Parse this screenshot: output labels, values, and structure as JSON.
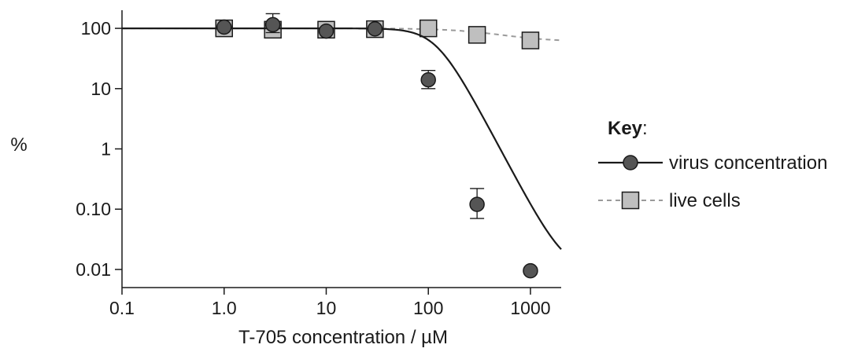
{
  "chart_data": {
    "type": "scatter",
    "xlabel": "T-705 concentration / µM",
    "ylabel": "%",
    "x_scale": "log",
    "y_scale": "log",
    "xlim": [
      0.1,
      2000
    ],
    "ylim": [
      0.005,
      200
    ],
    "x_ticks": [
      0.1,
      1,
      10,
      100,
      1000
    ],
    "x_tick_labels": [
      "0.1",
      "1.0",
      "10",
      "100",
      "1000"
    ],
    "y_ticks": [
      0.01,
      0.1,
      1,
      10,
      100
    ],
    "y_tick_labels": [
      "0.01",
      "0.10",
      "1",
      "10",
      "100"
    ],
    "grid": false,
    "legend": {
      "title": "Key",
      "title_suffix": ":",
      "placement": "right"
    },
    "series": [
      {
        "name": "virus concentration",
        "marker": "circle",
        "line": "solid",
        "color": "#555555",
        "line_color": "#1a1a1a",
        "points": [
          {
            "x": 1,
            "y": 105
          },
          {
            "x": 3,
            "y": 115,
            "err_low": 85,
            "err_high": 175
          },
          {
            "x": 10,
            "y": 90
          },
          {
            "x": 30,
            "y": 98
          },
          {
            "x": 100,
            "y": 14,
            "err_low": 10,
            "err_high": 20
          },
          {
            "x": 300,
            "y": 0.12,
            "err_low": 0.07,
            "err_high": 0.22
          },
          {
            "x": 1000,
            "y": 0.0095
          }
        ],
        "curve": {
          "top": 100,
          "bottom": 0.0093,
          "ec50": 120,
          "slope": 3.2
        }
      },
      {
        "name": "live cells",
        "marker": "square",
        "line": "dashed",
        "color": "#bfbfbf",
        "line_color": "#9a9a9a",
        "points": [
          {
            "x": 1,
            "y": 100
          },
          {
            "x": 3,
            "y": 95
          },
          {
            "x": 10,
            "y": 95
          },
          {
            "x": 30,
            "y": 97
          },
          {
            "x": 100,
            "y": 100
          },
          {
            "x": 300,
            "y": 78
          },
          {
            "x": 1000,
            "y": 63
          }
        ],
        "curve": {
          "top": 100,
          "bottom": 60,
          "ec50": 450,
          "slope": 1.6
        }
      }
    ]
  }
}
